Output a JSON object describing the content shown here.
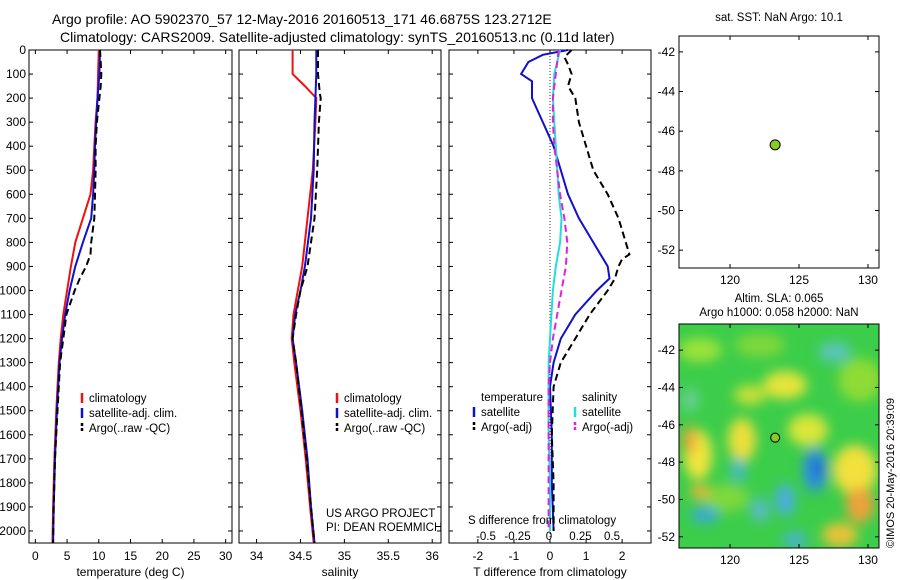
{
  "header": {
    "line1": "Argo profile: AO 5902370_57 12-May-2016 20160513_171 46.6875S 123.2712E",
    "line2": "Climatology: CARS2009. Satellite-adjusted climatology: synTS_20160513.nc (0.11d later)"
  },
  "colors": {
    "climatology": "#ee1111",
    "satellite": "#1010cc",
    "argo": "#000000",
    "sal_satellite": "#22dddd",
    "sal_argo": "#dd22dd",
    "map_dot": "#88cc22"
  },
  "chart_data": [
    {
      "type": "line",
      "id": "temperature",
      "xlabel": "temperature (deg C)",
      "xlim": [
        -1,
        31
      ],
      "xticks": [
        "0",
        "5",
        "10",
        "15",
        "20",
        "25",
        "30"
      ],
      "ylim": [
        2050,
        0
      ],
      "yticks": [
        "0",
        "100",
        "200",
        "300",
        "400",
        "500",
        "600",
        "700",
        "800",
        "900",
        "1000",
        "1100",
        "1200",
        "1300",
        "1400",
        "1500",
        "1600",
        "1700",
        "1800",
        "1900",
        "2000"
      ],
      "legend": [
        "climatology",
        "satellite-adj. clim.",
        "Argo(..raw -QC)"
      ],
      "series": [
        {
          "name": "climatology",
          "depth": [
            0,
            100,
            200,
            300,
            400,
            500,
            600,
            700,
            800,
            900,
            1000,
            1100,
            1200,
            1300,
            1400,
            1500,
            1700,
            1900,
            2050
          ],
          "values": [
            10.0,
            9.9,
            9.8,
            9.5,
            9.3,
            9.1,
            8.7,
            7.5,
            6.3,
            5.6,
            5.0,
            4.4,
            4.0,
            3.7,
            3.5,
            3.3,
            3.0,
            2.8,
            2.7
          ]
        },
        {
          "name": "satellite-adj. clim.",
          "depth": [
            0,
            100,
            200,
            300,
            400,
            500,
            600,
            700,
            800,
            900,
            1000,
            1100,
            1200,
            1300,
            1400,
            1500,
            1700,
            1900,
            2050
          ],
          "values": [
            10.2,
            10.1,
            9.8,
            9.6,
            9.4,
            9.3,
            9.1,
            8.8,
            7.5,
            6.3,
            5.4,
            4.7,
            4.2,
            3.8,
            3.6,
            3.4,
            3.1,
            2.9,
            2.8
          ]
        },
        {
          "name": "Argo(..raw -QC)",
          "depth": [
            0,
            50,
            100,
            150,
            200,
            300,
            400,
            500,
            600,
            700,
            800,
            850,
            900,
            950,
            1000,
            1100,
            1200,
            1300,
            1400,
            1500,
            1700,
            1900,
            2050
          ],
          "values": [
            10.2,
            10.3,
            10.4,
            10.3,
            10.1,
            9.7,
            9.5,
            9.5,
            9.4,
            9.3,
            8.8,
            8.7,
            8.0,
            7.0,
            6.2,
            4.9,
            4.4,
            3.9,
            3.7,
            3.5,
            3.1,
            2.9,
            2.8
          ]
        }
      ]
    },
    {
      "type": "line",
      "id": "salinity",
      "xlabel": "salinity",
      "xlim": [
        33.8,
        36.1
      ],
      "xticks": [
        "34",
        "34.5",
        "35",
        "35.5",
        "36"
      ],
      "ylim": [
        2050,
        0
      ],
      "legend": [
        "climatology",
        "satellite-adj. clim.",
        "Argo(..raw -QC)"
      ],
      "annotation": [
        "US ARGO PROJECT",
        "PI: DEAN ROEMMICH"
      ],
      "series": [
        {
          "name": "climatology",
          "depth": [
            0,
            100,
            150,
            200,
            300,
            500,
            700,
            900,
            1000,
            1100,
            1200,
            1300,
            1500,
            1700,
            1900,
            2050
          ],
          "values": [
            34.41,
            34.41,
            34.55,
            34.68,
            34.67,
            34.64,
            34.58,
            34.52,
            34.47,
            34.42,
            34.4,
            34.43,
            34.5,
            34.56,
            34.61,
            34.65
          ]
        },
        {
          "name": "satellite-adj. clim.",
          "depth": [
            0,
            100,
            200,
            300,
            500,
            700,
            900,
            1000,
            1100,
            1200,
            1300,
            1500,
            1700,
            1900,
            2050
          ],
          "values": [
            34.68,
            34.68,
            34.67,
            34.66,
            34.65,
            34.62,
            34.55,
            34.5,
            34.44,
            34.41,
            34.45,
            34.52,
            34.58,
            34.62,
            34.66
          ]
        },
        {
          "name": "Argo(..raw -QC)",
          "depth": [
            0,
            100,
            180,
            200,
            300,
            500,
            700,
            900,
            1000,
            1100,
            1200,
            1300,
            1500,
            1700,
            1900,
            2050
          ],
          "values": [
            34.7,
            34.7,
            34.72,
            34.73,
            34.71,
            34.69,
            34.66,
            34.58,
            34.5,
            34.45,
            34.41,
            34.45,
            34.51,
            34.57,
            34.62,
            34.66
          ]
        }
      ]
    },
    {
      "type": "line",
      "id": "difference",
      "xlabel": "T difference from climatology",
      "xlabel_top": "S difference from climatology",
      "xlim": [
        -2.8,
        2.8
      ],
      "xticks": [
        "-2",
        "-1",
        "0",
        "1",
        "2"
      ],
      "top_ticks": [
        "-0.5",
        "-0.25",
        "0",
        "0.25",
        "0.5"
      ],
      "ylim": [
        2050,
        0
      ],
      "legend_titles": [
        "temperature",
        "salinity"
      ],
      "legend": [
        "satellite",
        "Argo(-adj)",
        "satellite",
        "Argo(-adj)"
      ],
      "series": [
        {
          "name": "temperature satellite",
          "depth": [
            0,
            20,
            50,
            100,
            130,
            200,
            300,
            400,
            500,
            600,
            700,
            800,
            900,
            950,
            1000,
            1100,
            1200,
            1300,
            1400,
            1600,
            1800,
            2000
          ],
          "values": [
            0.5,
            -0.2,
            -0.6,
            -0.8,
            -0.5,
            -0.5,
            -0.2,
            0.1,
            0.3,
            0.5,
            0.8,
            1.2,
            1.6,
            1.65,
            1.3,
            0.7,
            0.3,
            0.1,
            0.0,
            0.05,
            0.05,
            0.1
          ]
        },
        {
          "name": "temperature Argo(-adj)",
          "depth": [
            0,
            30,
            60,
            100,
            150,
            200,
            300,
            400,
            500,
            600,
            700,
            800,
            850,
            870,
            900,
            950,
            1000,
            1100,
            1200,
            1300,
            1400,
            1600,
            1800,
            2000
          ],
          "values": [
            0.6,
            0.4,
            0.5,
            0.6,
            0.5,
            0.7,
            0.8,
            1.0,
            1.2,
            1.6,
            1.9,
            2.1,
            2.2,
            2.0,
            1.9,
            1.8,
            1.6,
            1.1,
            0.7,
            0.3,
            0.1,
            0.05,
            0.1,
            0.1
          ]
        },
        {
          "name": "salinity satellite",
          "depth": [
            0,
            50,
            100,
            200,
            300,
            400,
            500,
            600,
            700,
            800,
            900,
            1000,
            1100,
            1200,
            1300,
            1400,
            1600,
            1800,
            2000
          ],
          "values": [
            0.07,
            0.05,
            0.03,
            0.02,
            0.03,
            0.04,
            0.05,
            0.06,
            0.08,
            0.07,
            0.04,
            0.02,
            0.01,
            0.0,
            -0.01,
            -0.01,
            -0.01,
            0.0,
            0.0
          ]
        },
        {
          "name": "salinity Argo(-adj)",
          "depth": [
            0,
            50,
            100,
            200,
            300,
            400,
            500,
            600,
            700,
            800,
            900,
            1000,
            1100,
            1200,
            1300,
            1400,
            1600,
            1800,
            2000
          ],
          "values": [
            0.06,
            0.05,
            0.04,
            0.02,
            0.02,
            0.03,
            0.05,
            0.07,
            0.1,
            0.12,
            0.11,
            0.08,
            0.05,
            0.02,
            0.0,
            -0.01,
            -0.01,
            -0.01,
            -0.01
          ]
        }
      ]
    },
    {
      "type": "scatter",
      "id": "sst_map",
      "title": "sat. SST: NaN Argo: 10.1",
      "xlim": [
        116.3,
        130.8
      ],
      "ylim": [
        -52.9,
        -41.2
      ],
      "xticks": [
        "120",
        "125",
        "130"
      ],
      "yticks": [
        "-42",
        "-44",
        "-46",
        "-48",
        "-50",
        "-52"
      ],
      "points": [
        {
          "x": 123.27,
          "y": -46.69
        }
      ]
    },
    {
      "type": "heatmap",
      "id": "sla_map",
      "title_line1": "Altim. SLA: 0.065",
      "title_line2": "Argo h1000: 0.058 h2000: NaN",
      "xlim": [
        116.3,
        130.8
      ],
      "ylim": [
        -52.6,
        -40.6
      ],
      "xticks": [
        "120",
        "125",
        "130"
      ],
      "yticks": [
        "-42",
        "-44",
        "-46",
        "-48",
        "-50",
        "-52"
      ],
      "points": [
        {
          "x": 123.27,
          "y": -46.69
        }
      ]
    }
  ],
  "footer": {
    "stamp": "©IMOS 20-May-2016 20:39:09"
  }
}
